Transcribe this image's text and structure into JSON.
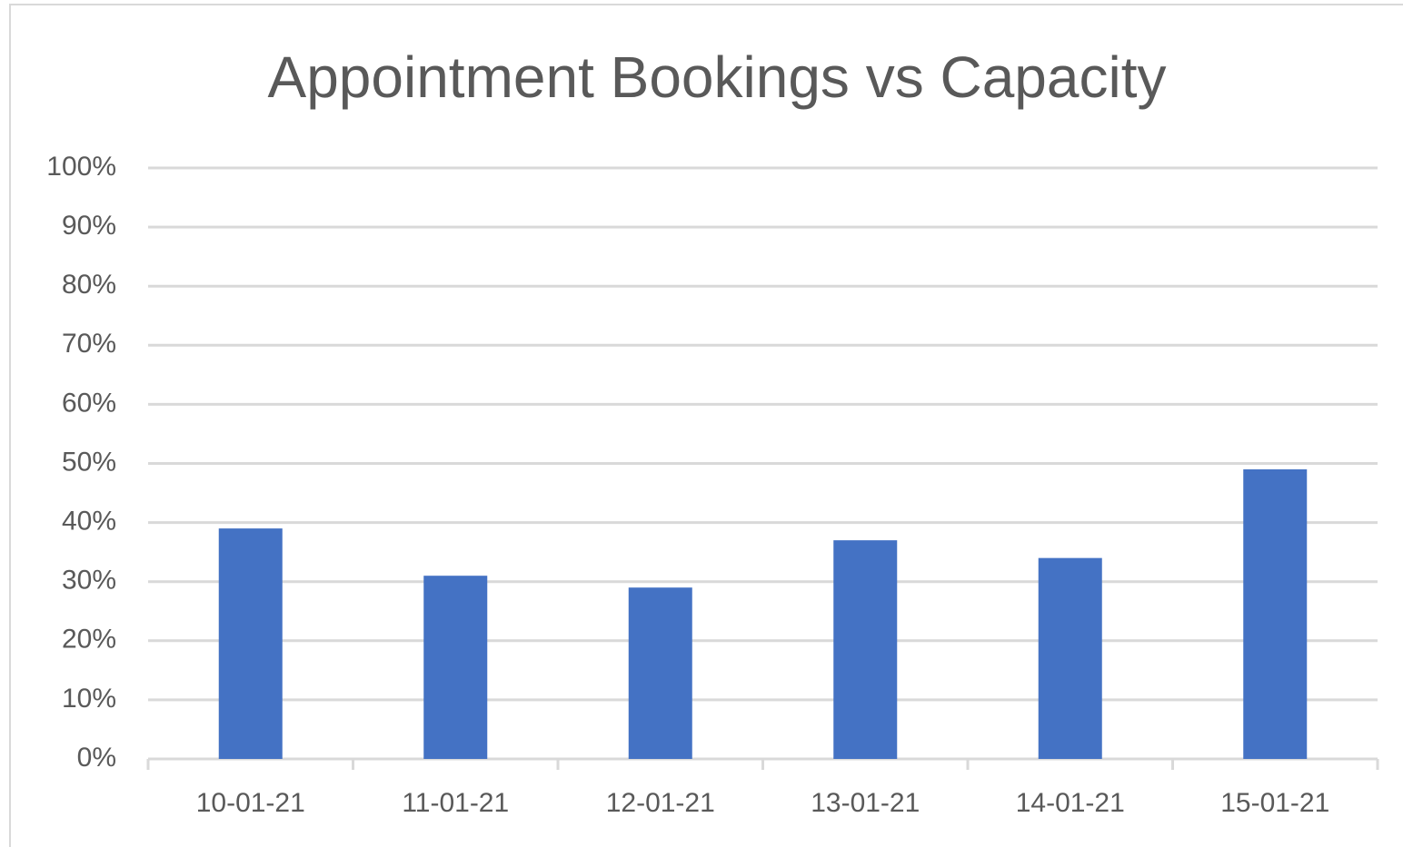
{
  "chart_data": {
    "type": "bar",
    "title": "Appointment Bookings vs Capacity",
    "categories": [
      "10-01-21",
      "11-01-21",
      "12-01-21",
      "13-01-21",
      "14-01-21",
      "15-01-21"
    ],
    "values": [
      39,
      31,
      29,
      37,
      34,
      49
    ],
    "color": "#4472c4",
    "ylim": [
      0,
      100
    ],
    "yticks": [
      {
        "value": 0,
        "label": "0%"
      },
      {
        "value": 10,
        "label": "10%"
      },
      {
        "value": 20,
        "label": "20%"
      },
      {
        "value": 30,
        "label": "30%"
      },
      {
        "value": 40,
        "label": "40%"
      },
      {
        "value": 50,
        "label": "50%"
      },
      {
        "value": 60,
        "label": "60%"
      },
      {
        "value": 70,
        "label": "70%"
      },
      {
        "value": 80,
        "label": "80%"
      },
      {
        "value": 90,
        "label": "90%"
      },
      {
        "value": 100,
        "label": "100%"
      }
    ],
    "grid": true
  }
}
